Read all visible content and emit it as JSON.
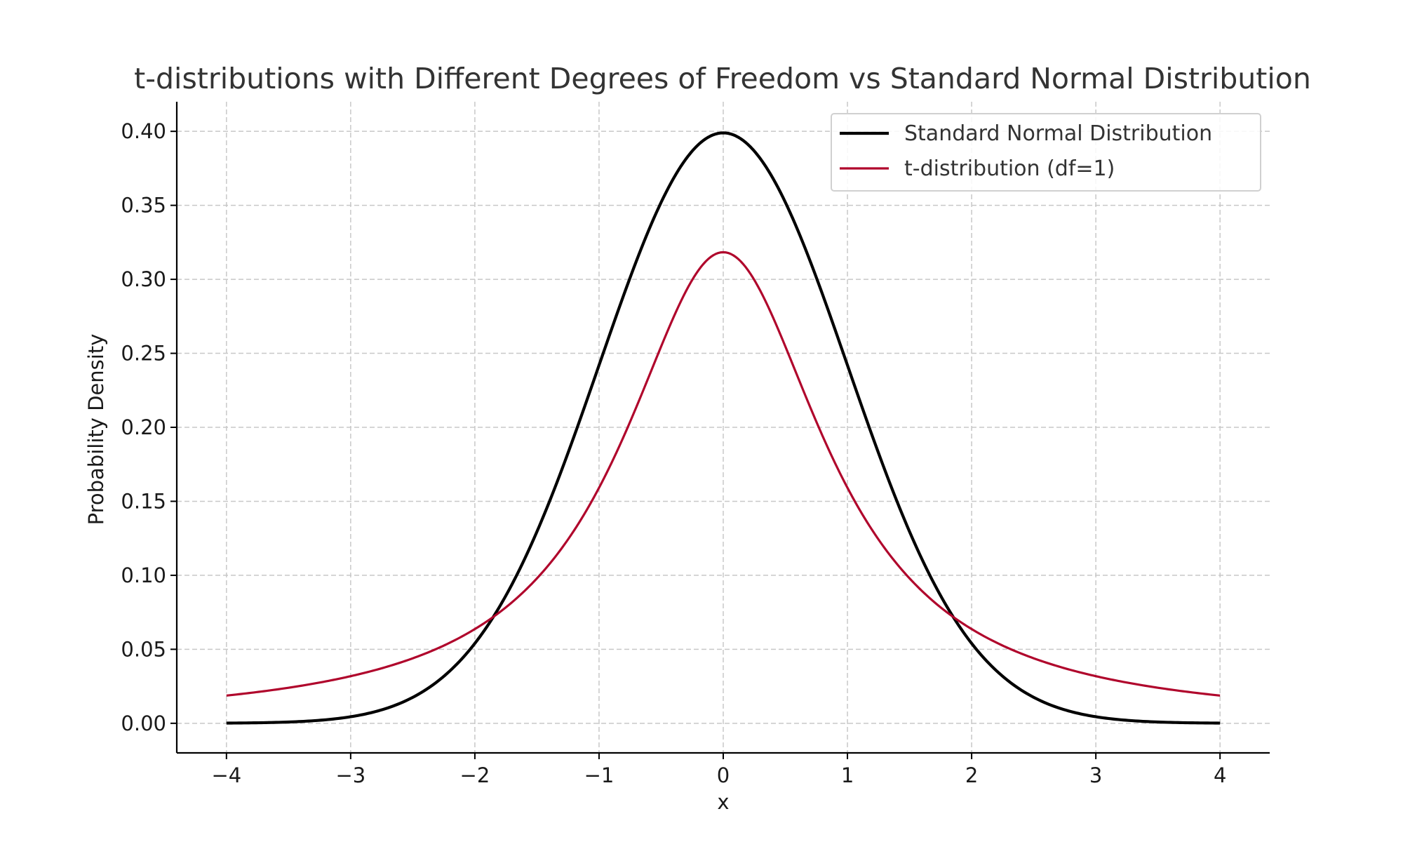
{
  "chart_data": {
    "type": "line",
    "title": "t-distributions with Different Degrees of Freedom vs Standard Normal Distribution",
    "xlabel": "x",
    "ylabel": "Probability Density",
    "xlim": [
      -4.4,
      4.4
    ],
    "ylim": [
      -0.02,
      0.42
    ],
    "x_range": [
      -4,
      4
    ],
    "grid": true,
    "legend_position": "top-right",
    "x_ticks": [
      -4,
      -3,
      -2,
      -1,
      0,
      1,
      2,
      3,
      4
    ],
    "x_tick_labels": [
      "−4",
      "−3",
      "−2",
      "−1",
      "0",
      "1",
      "2",
      "3",
      "4"
    ],
    "y_ticks": [
      0.0,
      0.05,
      0.1,
      0.15,
      0.2,
      0.25,
      0.3,
      0.35,
      0.4
    ],
    "y_tick_labels": [
      "0.00",
      "0.05",
      "0.10",
      "0.15",
      "0.20",
      "0.25",
      "0.30",
      "0.35",
      "0.40"
    ],
    "series": [
      {
        "name": "Standard Normal Distribution",
        "color": "#000000",
        "x": [
          -4,
          -3.5,
          -3,
          -2.5,
          -2,
          -1.5,
          -1,
          -0.5,
          0,
          0.5,
          1,
          1.5,
          2,
          2.5,
          3,
          3.5,
          4
        ],
        "y": [
          0.0001,
          0.0009,
          0.0044,
          0.0175,
          0.054,
          0.1295,
          0.242,
          0.3521,
          0.3989,
          0.3521,
          0.242,
          0.1295,
          0.054,
          0.0175,
          0.0044,
          0.0009,
          0.0001
        ]
      },
      {
        "name": "t-distribution (df=1)",
        "color": "#b0062c",
        "x": [
          -4,
          -3.5,
          -3,
          -2.5,
          -2,
          -1.5,
          -1,
          -0.5,
          0,
          0.5,
          1,
          1.5,
          2,
          2.5,
          3,
          3.5,
          4
        ],
        "y": [
          0.0187,
          0.024,
          0.0318,
          0.0439,
          0.0637,
          0.0979,
          0.1592,
          0.2546,
          0.3183,
          0.2546,
          0.1592,
          0.0979,
          0.0637,
          0.0439,
          0.0318,
          0.024,
          0.0187
        ]
      }
    ]
  }
}
